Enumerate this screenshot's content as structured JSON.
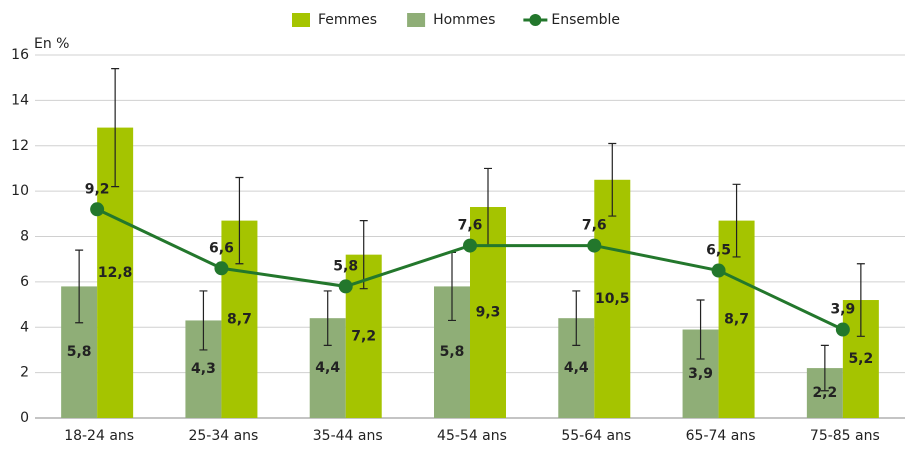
{
  "chart_data": {
    "type": "bar",
    "y_label": "En %",
    "categories": [
      "18-24 ans",
      "25-34 ans",
      "35-44 ans",
      "45-54 ans",
      "55-64 ans",
      "65-74 ans",
      "75-85 ans"
    ],
    "series": [
      {
        "name": "Femmes",
        "color": "#a5c400",
        "values": [
          12.8,
          8.7,
          7.2,
          9.3,
          10.5,
          8.7,
          5.2
        ],
        "value_labels": [
          "12,8",
          "8,7",
          "7,2",
          "9,3",
          "10,5",
          "8,7",
          "5,2"
        ],
        "errors": [
          2.6,
          1.9,
          1.5,
          1.7,
          1.6,
          1.6,
          1.6
        ]
      },
      {
        "name": "Hommes",
        "color": "#8fae77",
        "values": [
          5.8,
          4.3,
          4.4,
          5.8,
          4.4,
          3.9,
          2.2
        ],
        "value_labels": [
          "5,8",
          "4,3",
          "4,4",
          "5,8",
          "4,4",
          "3,9",
          "2,2"
        ],
        "errors": [
          1.6,
          1.3,
          1.2,
          1.5,
          1.2,
          1.3,
          1.0
        ]
      },
      {
        "name": "Ensemble",
        "type": "line",
        "color": "#23772c",
        "values": [
          9.2,
          6.6,
          5.8,
          7.6,
          7.6,
          6.5,
          3.9
        ],
        "value_labels": [
          "9,2",
          "6,6",
          "5,8",
          "7,6",
          "7,6",
          "6,5",
          "3,9"
        ]
      }
    ],
    "ylim": [
      0,
      16
    ],
    "yticks": [
      0,
      2,
      4,
      6,
      8,
      10,
      12,
      14,
      16
    ],
    "grid": true,
    "legend": "top"
  }
}
